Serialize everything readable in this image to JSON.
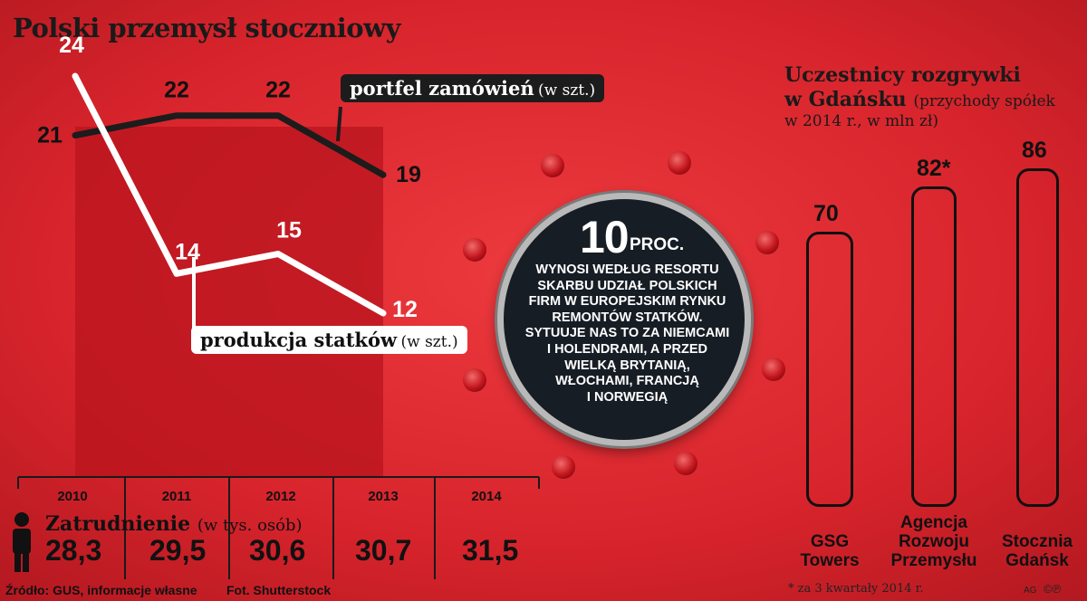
{
  "title": "Polski przemysł stoczniowy",
  "chart_data": [
    {
      "type": "line",
      "x": [
        2010,
        2011,
        2012,
        2013
      ],
      "series": [
        {
          "name": "portfel zamówień",
          "unit": "(w szt.)",
          "values": [
            21,
            22,
            22,
            19
          ],
          "color": "#1c1c1c"
        },
        {
          "name": "produkcja statków",
          "unit": "(w szt.)",
          "values": [
            24,
            14,
            15,
            12
          ],
          "color": "#ffffff"
        }
      ]
    },
    {
      "type": "bar",
      "title": "Uczestnicy rozgrywki w Gdańsku",
      "subtitle": "(przychody spółek w 2014 r., w mln zł)",
      "categories": [
        "GSG Towers",
        "Agencja Rozwoju Przemysłu",
        "Stocznia Gdańsk"
      ],
      "category_lines": [
        [
          "GSG",
          "Towers"
        ],
        [
          "Agencja",
          "Rozwoju",
          "Przemysłu"
        ],
        [
          "Stocznia",
          "Gdańsk"
        ]
      ],
      "values": [
        70,
        82,
        86
      ],
      "value_labels": [
        "70",
        "82*",
        "86"
      ],
      "ylim": [
        0,
        100
      ]
    },
    {
      "type": "table",
      "title": "Zatrudnienie",
      "unit": "(w tys. osób)",
      "years": [
        "2010",
        "2011",
        "2012",
        "2013",
        "2014"
      ],
      "values": [
        "28,3",
        "29,5",
        "30,6",
        "30,7",
        "31,5"
      ]
    }
  ],
  "stat": {
    "value": "10",
    "unit": "PROC.",
    "lines": [
      "WYNOSI WEDŁUG RESORTU",
      "SKARBU UDZIAŁ POLSKICH",
      "FIRM W EUROPEJSKIM RYNKU",
      "REMONTÓW STATKÓW.",
      "SYTUUJE NAS TO ZA NIEMCAMI",
      "I HOLENDRAMI, A PRZED",
      "WIELKĄ BRYTANIĄ,",
      "WŁOCHAMI, FRANCJĄ",
      "I NORWEGIĄ"
    ]
  },
  "right": {
    "title_line1": "Uczestnicy rozgrywki",
    "title_line2": "w Gdańsku",
    "sub_line1": "(przychody spółek",
    "sub_line2": "w 2014 r., w mln zł)"
  },
  "footnote": "* za 3 kwartały 2014 r.",
  "source": "Źródło: GUS, informacje własne",
  "photo": "Fot. Shutterstock",
  "credit": "AG",
  "copyright": "©℗",
  "colors": {
    "background": "#d8242c",
    "dark": "#1c1c1c",
    "panel": "#b8141e"
  }
}
